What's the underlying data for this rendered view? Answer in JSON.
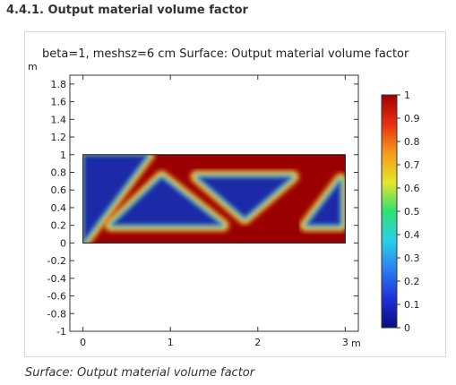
{
  "heading": "4.4.1. Output material volume factor",
  "caption": "Surface: Output material volume factor",
  "chart_data": {
    "type": "heatmap",
    "title": "beta=1, meshsz=6 cm  Surface: Output material volume factor",
    "xlabel": "m",
    "ylabel": "m",
    "xlim": [
      -0.15,
      3.15
    ],
    "ylim": [
      -1.0,
      1.9
    ],
    "x_ticks": [
      0,
      1,
      2,
      3
    ],
    "x_tick_labels": [
      "0",
      "1",
      "2",
      "3"
    ],
    "y_ticks": [
      1.8,
      1.6,
      1.4,
      1.2,
      1,
      0.8,
      0.6,
      0.4,
      0.2,
      0,
      -0.2,
      -0.4,
      -0.6,
      -0.8,
      -1
    ],
    "y_tick_labels": [
      "1.8",
      "1.6",
      "1.4",
      "1.2",
      "1",
      "0.8",
      "0.6",
      "0.4",
      "0.2",
      "0",
      "-0.2",
      "-0.4",
      "-0.6",
      "-0.8",
      "-1"
    ],
    "domain": {
      "x": [
        0,
        3
      ],
      "y": [
        0,
        1
      ]
    },
    "colorbar": {
      "min": 0,
      "max": 1,
      "tick_labels": [
        "1",
        "0.9",
        "0.8",
        "0.7",
        "0.6",
        "0.5",
        "0.4",
        "0.3",
        "0.2",
        "0.1",
        "0"
      ],
      "colormap": [
        "#0b0b80",
        "#1e30d8",
        "#2a7ff0",
        "#2ad0e8",
        "#30e070",
        "#e6e62a",
        "#f59a1e",
        "#e83010",
        "#a00000"
      ]
    },
    "voids": [
      {
        "name": "left-triangle",
        "vertices": [
          [
            0,
            0
          ],
          [
            0,
            1
          ],
          [
            0.75,
            1
          ]
        ]
      },
      {
        "name": "center-left-triangle",
        "vertices": [
          [
            0.9,
            0.75
          ],
          [
            0.32,
            0.2
          ],
          [
            1.6,
            0.2
          ]
        ]
      },
      {
        "name": "center-right-triangle",
        "vertices": [
          [
            1.3,
            0.75
          ],
          [
            2.4,
            0.75
          ],
          [
            1.85,
            0.28
          ]
        ]
      },
      {
        "name": "right-triangle",
        "vertices": [
          [
            2.55,
            0.2
          ],
          [
            2.95,
            0.2
          ],
          [
            2.95,
            0.72
          ]
        ]
      }
    ],
    "colors": {
      "solid": "#9a0000",
      "void": "#1a2aa8"
    }
  }
}
